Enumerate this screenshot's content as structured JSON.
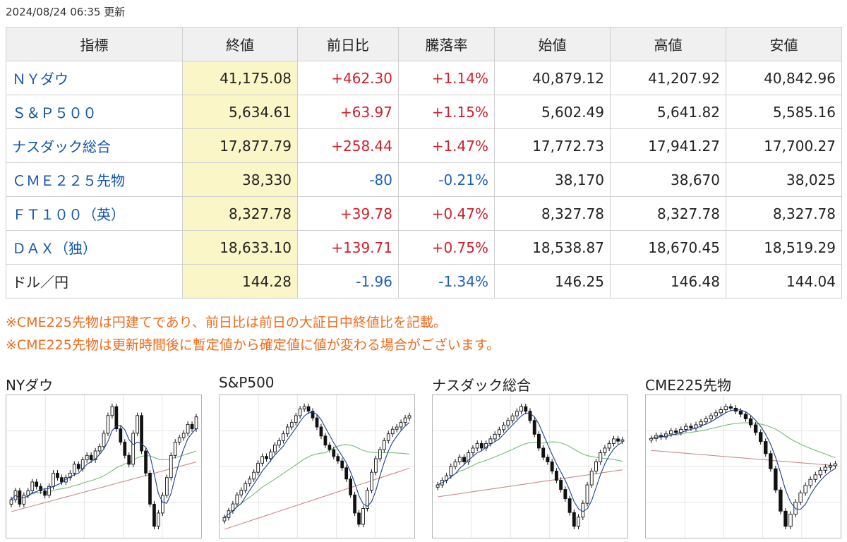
{
  "updated": "2024/08/24 06:35 更新",
  "table": {
    "headers": [
      "指標",
      "終値",
      "前日比",
      "騰落率",
      "始値",
      "高値",
      "安値"
    ],
    "rows": [
      {
        "name": "ＮＹダウ",
        "link": true,
        "close": "41,175.08",
        "change": "+462.30",
        "rate": "+1.14%",
        "dir": "up",
        "open": "40,879.12",
        "high": "41,207.92",
        "low": "40,842.96"
      },
      {
        "name": "Ｓ＆Ｐ５００",
        "link": true,
        "close": "5,634.61",
        "change": "+63.97",
        "rate": "+1.15%",
        "dir": "up",
        "open": "5,602.49",
        "high": "5,641.82",
        "low": "5,585.16"
      },
      {
        "name": "ナスダック総合",
        "link": true,
        "close": "17,877.79",
        "change": "+258.44",
        "rate": "+1.47%",
        "dir": "up",
        "open": "17,772.73",
        "high": "17,941.27",
        "low": "17,700.27"
      },
      {
        "name": "ＣＭＥ２２５先物",
        "link": true,
        "close": "38,330",
        "change": "-80",
        "rate": "-0.21%",
        "dir": "down",
        "open": "38,170",
        "high": "38,670",
        "low": "38,025"
      },
      {
        "name": "ＦＴ１００（英）",
        "link": true,
        "close": "8,327.78",
        "change": "+39.78",
        "rate": "+0.47%",
        "dir": "up",
        "open": "8,327.78",
        "high": "8,327.78",
        "low": "8,327.78"
      },
      {
        "name": "ＤＡＸ（独）",
        "link": true,
        "close": "18,633.10",
        "change": "+139.71",
        "rate": "+0.75%",
        "dir": "up",
        "open": "18,538.87",
        "high": "18,670.45",
        "low": "18,519.29"
      },
      {
        "name": "ドル／円",
        "link": false,
        "close": "144.28",
        "change": "-1.96",
        "rate": "-1.34%",
        "dir": "down",
        "open": "146.25",
        "high": "146.48",
        "low": "144.04"
      }
    ]
  },
  "notes": [
    "※CME225先物は円建てであり、前日比は前日の大証日中終値比を記載。",
    "※CME225先物は更新時間後に暫定値から確定値に値が変わる場合がございます。"
  ],
  "colors": {
    "up": "#d0202a",
    "down": "#1f5fbf",
    "link": "#1155aa",
    "note": "#ee6b1c",
    "close_bg": "#fbf6c8",
    "ma_short": "#1c3f8f",
    "ma_mid": "#77bb77",
    "ma_long": "#c98a8a"
  },
  "charts": [
    {
      "title": "NYダウ",
      "chart_data": {
        "type": "candlestick",
        "closes": [
          39.3,
          39.5,
          39.2,
          39.4,
          39.5,
          39.7,
          39.6,
          39.5,
          39.4,
          39.6,
          39.9,
          39.8,
          39.7,
          39.8,
          39.9,
          40.1,
          40.0,
          40.2,
          40.3,
          40.2,
          40.4,
          40.5,
          40.8,
          41.2,
          41.4,
          40.9,
          40.6,
          40.3,
          40.1,
          40.8,
          41.2,
          40.4,
          39.9,
          39.2,
          38.7,
          39.0,
          39.4,
          39.8,
          40.3,
          40.6,
          40.7,
          40.8,
          41.0,
          40.9,
          41.17
        ]
      }
    },
    {
      "title": "S&P500",
      "chart_data": {
        "type": "candlestick",
        "closes": [
          5.18,
          5.21,
          5.24,
          5.28,
          5.3,
          5.33,
          5.35,
          5.38,
          5.42,
          5.45,
          5.44,
          5.47,
          5.5,
          5.52,
          5.55,
          5.58,
          5.6,
          5.63,
          5.66,
          5.67,
          5.65,
          5.62,
          5.58,
          5.54,
          5.5,
          5.48,
          5.45,
          5.43,
          5.4,
          5.35,
          5.28,
          5.2,
          5.15,
          5.22,
          5.3,
          5.38,
          5.44,
          5.48,
          5.52,
          5.55,
          5.57,
          5.58,
          5.6,
          5.62,
          5.63
        ]
      }
    },
    {
      "title": "ナスダック総合",
      "chart_data": {
        "type": "candlestick",
        "closes": [
          16.9,
          17.0,
          17.1,
          17.3,
          17.4,
          17.5,
          17.4,
          17.6,
          17.7,
          17.8,
          17.7,
          17.8,
          17.9,
          18.0,
          18.1,
          18.2,
          18.3,
          18.4,
          18.5,
          18.6,
          18.5,
          18.3,
          18.0,
          17.7,
          17.5,
          17.4,
          17.2,
          17.0,
          16.8,
          16.6,
          16.3,
          16.0,
          16.2,
          16.5,
          16.9,
          17.2,
          17.4,
          17.6,
          17.7,
          17.8,
          17.9,
          17.85,
          17.88
        ]
      }
    },
    {
      "title": "CME225先物",
      "chart_data": {
        "type": "candlestick",
        "closes": [
          40.0,
          40.2,
          40.1,
          40.3,
          40.5,
          40.4,
          40.6,
          40.8,
          40.7,
          40.9,
          41.1,
          41.3,
          41.5,
          41.7,
          41.9,
          42.1,
          42.0,
          41.8,
          41.6,
          41.3,
          40.9,
          40.4,
          39.8,
          39.0,
          38.0,
          36.6,
          35.2,
          34.2,
          35.0,
          35.8,
          36.4,
          36.9,
          37.3,
          37.6,
          37.9,
          38.1,
          38.2,
          38.33
        ]
      }
    }
  ]
}
